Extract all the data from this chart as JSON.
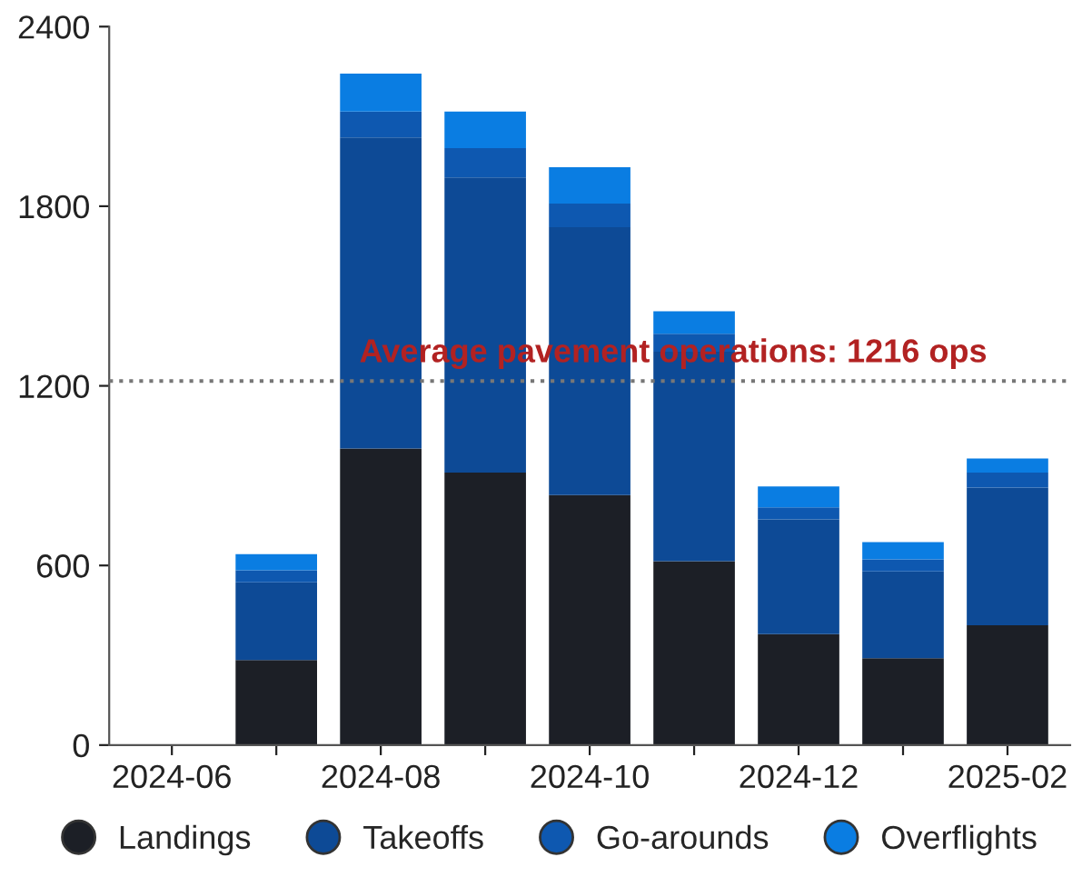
{
  "chart_data": {
    "type": "bar",
    "stacked": true,
    "categories": [
      "2024-06",
      null,
      "2024-08",
      null,
      "2024-10",
      null,
      "2024-12",
      null,
      "2025-02"
    ],
    "series": [
      {
        "name": "Landings",
        "color": "#1c1f26",
        "values": [
          null,
          284,
          991,
          910,
          835,
          614,
          371,
          290,
          400
        ]
      },
      {
        "name": "Takeoffs",
        "color": "#0d4a96",
        "values": [
          null,
          260,
          1039,
          986,
          895,
          700,
          383,
          290,
          460
        ]
      },
      {
        "name": "Go-arounds",
        "color": "#0e58b0",
        "values": [
          null,
          40,
          86,
          98,
          79,
          60,
          40,
          40,
          50
        ]
      },
      {
        "name": "Overflights",
        "color": "#0a7de2",
        "values": [
          null,
          54,
          127,
          122,
          121,
          75,
          70,
          58,
          47
        ]
      }
    ],
    "ylim": [
      0,
      2400
    ],
    "yticks": [
      0,
      600,
      1200,
      1800,
      2400
    ],
    "grid": false,
    "legend": "bottom",
    "ref_lines": [
      {
        "axis": "y",
        "value": 1216,
        "label": "Average pavement operations: 1216 ops",
        "color": "#777777",
        "line_style": "dotted"
      }
    ]
  }
}
